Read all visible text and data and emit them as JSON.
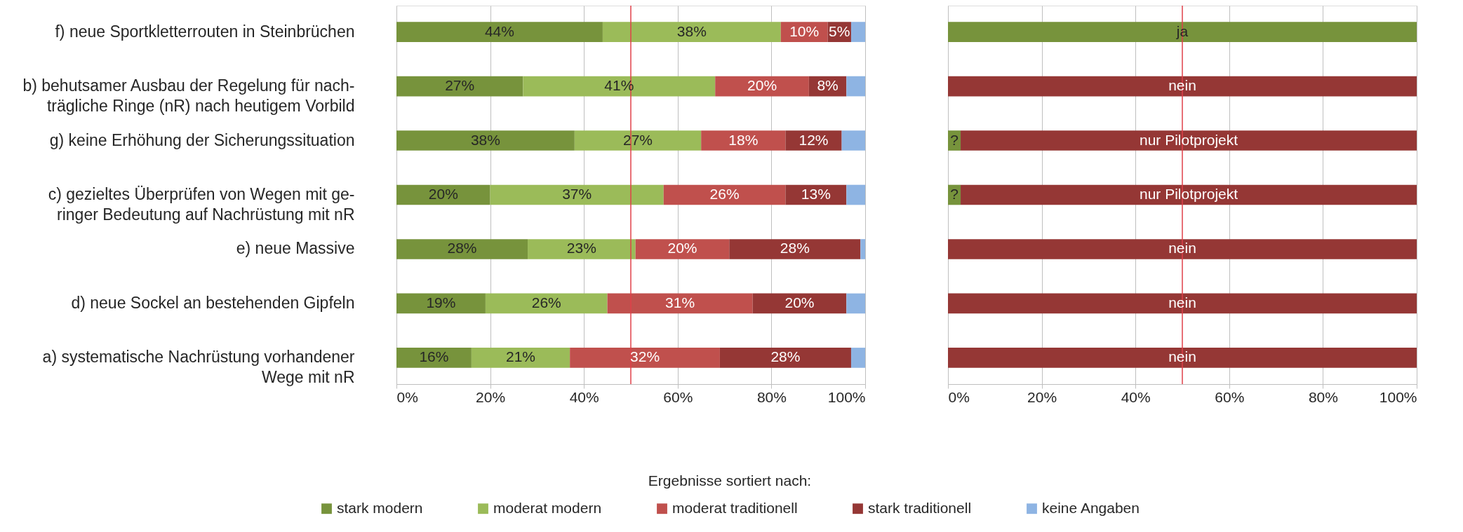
{
  "chart_data": [
    {
      "type": "bar",
      "orientation": "horizontal",
      "stacked": true,
      "categories": [
        "f) neue Sportkletterrouten in Steinbrüchen",
        "b) behutsamer Ausbau der Regelung für nach-\nträgliche Ringe (nR) nach heutigem Vorbild",
        "g) keine Erhöhung der Sicherungssituation",
        "c) gezieltes Überprüfen von Wegen mit ge-\nringer Bedeutung auf Nachrüstung mit nR",
        "e) neue Massive",
        "d) neue Sockel an bestehenden Gipfeln",
        "a) systematische Nachrüstung vorhandener\nWege mit nR"
      ],
      "series": [
        {
          "name": "stark modern",
          "color": "#77933c",
          "values": [
            44,
            27,
            38,
            20,
            28,
            19,
            16
          ],
          "value_labels": [
            "44%",
            "27%",
            "38%",
            "20%",
            "28%",
            "19%",
            "16%"
          ]
        },
        {
          "name": "moderat modern",
          "color": "#9bbb59",
          "values": [
            38,
            41,
            27,
            37,
            23,
            26,
            21
          ],
          "value_labels": [
            "38%",
            "41%",
            "27%",
            "37%",
            "23%",
            "26%",
            "21%"
          ]
        },
        {
          "name": "moderat traditionell",
          "color": "#c0504d",
          "values": [
            10,
            20,
            18,
            26,
            20,
            31,
            32
          ],
          "value_labels": [
            "10%",
            "20%",
            "18%",
            "26%",
            "20%",
            "31%",
            "32%"
          ]
        },
        {
          "name": "stark traditionell",
          "color": "#953735",
          "values": [
            5,
            8,
            12,
            13,
            28,
            20,
            28
          ],
          "value_labels": [
            "5%",
            "8%",
            "12%",
            "13%",
            "28%",
            "20%",
            "28%"
          ]
        },
        {
          "name": "keine Angaben",
          "color": "#8eb4e3",
          "values": [
            3,
            4,
            5,
            4,
            1,
            4,
            3
          ],
          "value_labels": [
            null,
            null,
            null,
            null,
            null,
            null,
            null
          ]
        }
      ],
      "xlim": [
        0,
        100
      ],
      "xticks": [
        {
          "value": 0,
          "label": "0%"
        },
        {
          "value": 20,
          "label": "20%"
        },
        {
          "value": 40,
          "label": "40%"
        },
        {
          "value": 60,
          "label": "60%"
        },
        {
          "value": 80,
          "label": "80%"
        },
        {
          "value": 100,
          "label": "100%"
        }
      ],
      "grid": "x",
      "legend": "bottom",
      "legend_title": "Ergebnisse sortiert nach:",
      "ref_lines": [
        {
          "axis": "x",
          "value": 50,
          "color": "#e0404a"
        }
      ]
    },
    {
      "type": "bar",
      "orientation": "horizontal",
      "stacked": true,
      "categories": [
        null,
        null,
        null,
        null,
        null,
        null,
        null
      ],
      "series": [
        {
          "color": "#77933c",
          "values": [
            100,
            null,
            2.7,
            2.7,
            null,
            null,
            null
          ],
          "value_labels": [
            "ja",
            null,
            "?",
            "?",
            null,
            null,
            null
          ]
        },
        {
          "color": "#953735",
          "values": [
            null,
            100,
            97.3,
            97.3,
            100,
            100,
            100
          ],
          "value_labels": [
            null,
            "nein",
            "nur Pilotprojekt",
            "nur Pilotprojekt",
            "nein",
            "nein",
            "nein"
          ]
        }
      ],
      "xlim": [
        0,
        100
      ],
      "xticks": [
        {
          "value": 0,
          "label": "0%"
        },
        {
          "value": 20,
          "label": "20%"
        },
        {
          "value": 40,
          "label": "40%"
        },
        {
          "value": 60,
          "label": "60%"
        },
        {
          "value": 80,
          "label": "80%"
        },
        {
          "value": 100,
          "label": "100%"
        }
      ],
      "grid": "x",
      "tick_labels": "x",
      "ref_lines": [
        {
          "axis": "x",
          "value": 50,
          "color": "#e0404a"
        }
      ]
    }
  ]
}
